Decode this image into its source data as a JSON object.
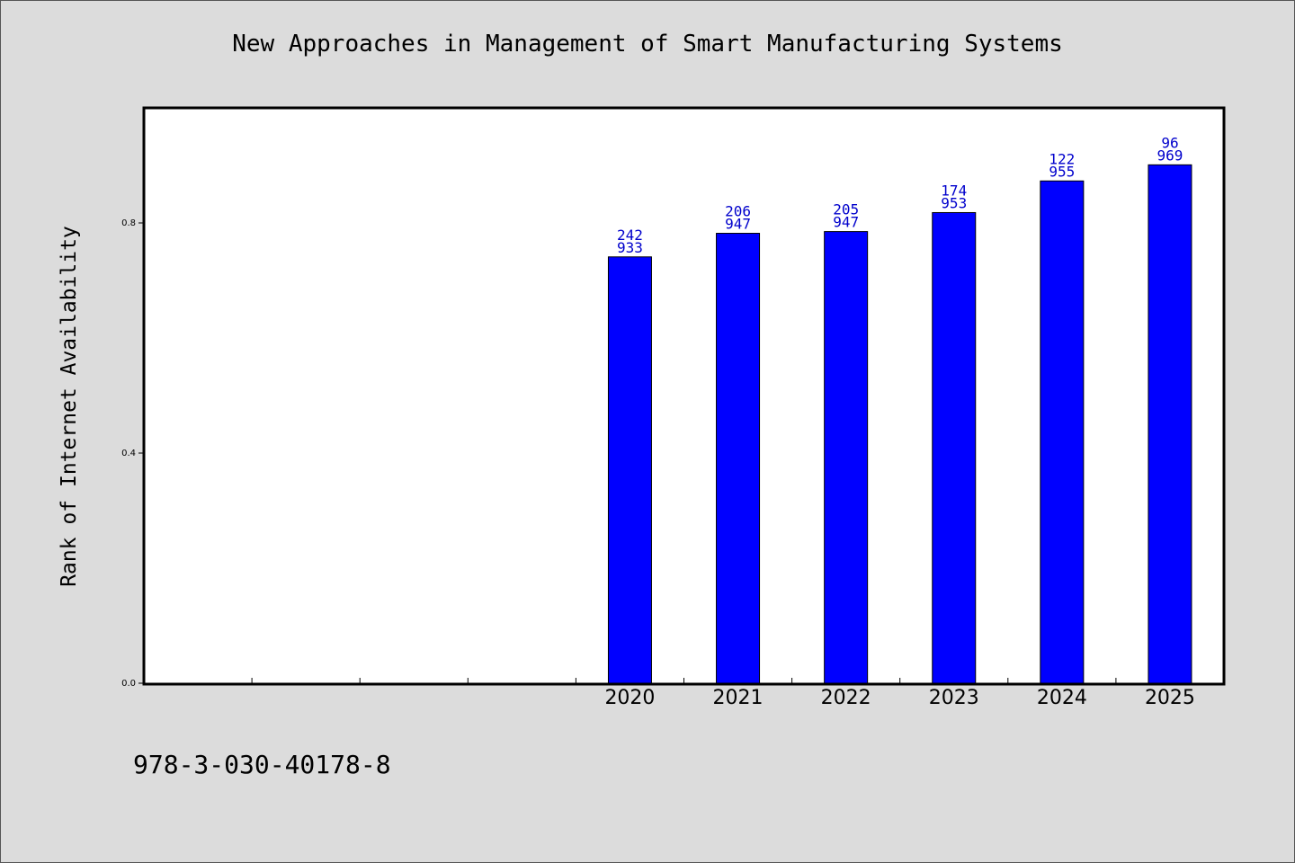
{
  "chart_data": {
    "type": "bar",
    "title": "New Approaches in Management of Smart Manufacturing Systems",
    "ylabel": "Rank of Internet Availability",
    "xlabel": "",
    "ylim": [
      0,
      1.0
    ],
    "yticks": [
      0.0,
      0.4,
      0.8
    ],
    "categories": [
      "2020",
      "2021",
      "2022",
      "2023",
      "2024",
      "2025"
    ],
    "values": [
      0.741,
      0.782,
      0.785,
      0.818,
      0.873,
      0.901
    ],
    "label_top": [
      "242",
      "206",
      "205",
      "174",
      "122",
      "96"
    ],
    "label_bottom": [
      "933",
      "947",
      "947",
      "953",
      "955",
      "969"
    ],
    "grid": false,
    "bar_color": "#0000ff",
    "label_color": "#0000cc"
  },
  "footer": {
    "isbn": "978-3-030-40178-8"
  }
}
